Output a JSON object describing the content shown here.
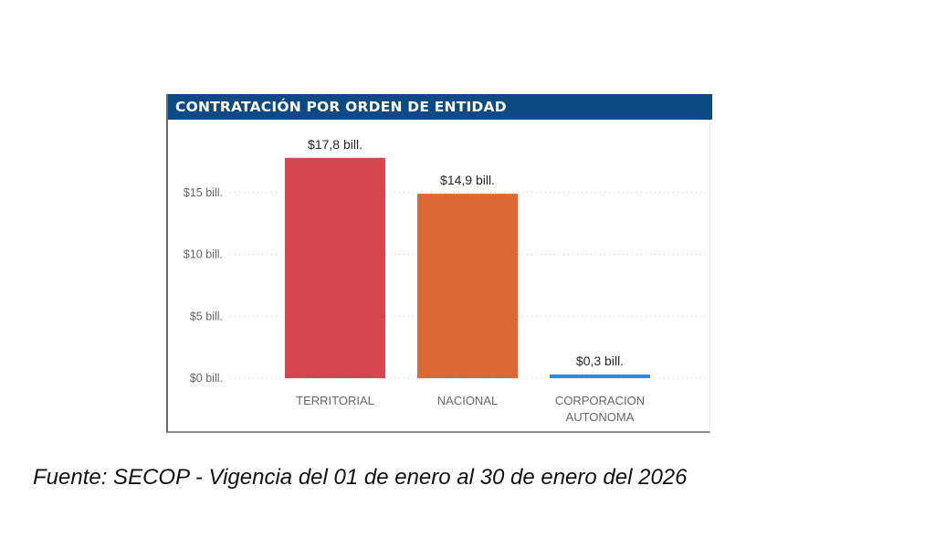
{
  "chart_data": {
    "type": "bar",
    "title": "CONTRATACIÓN POR ORDEN DE ENTIDAD",
    "xlabel": "",
    "ylabel": "",
    "ylim": [
      0,
      18
    ],
    "grid": true,
    "yticks": [
      {
        "value": 0,
        "label": "$0 bill."
      },
      {
        "value": 5,
        "label": "$5 bill."
      },
      {
        "value": 10,
        "label": "$10 bill."
      },
      {
        "value": 15,
        "label": "$15 bill."
      }
    ],
    "categories": [
      [
        "TERRITORIAL"
      ],
      [
        "NACIONAL"
      ],
      [
        "CORPORACION",
        "AUTONOMA"
      ]
    ],
    "values": [
      17.8,
      14.9,
      0.3
    ],
    "data_labels": [
      "$17,8 bill.",
      "$14,9 bill.",
      "$0,3 bill."
    ],
    "colors": [
      "#d64550",
      "#d96a36",
      "#2f8be6"
    ],
    "unit": "bill."
  },
  "header": {
    "title": "CONTRATACIÓN POR ORDEN DE ENTIDAD",
    "background": "#0c4a84"
  },
  "footer": {
    "source": "Fuente: SECOP - Vigencia del 01 de enero al 30 de enero del 2026"
  }
}
